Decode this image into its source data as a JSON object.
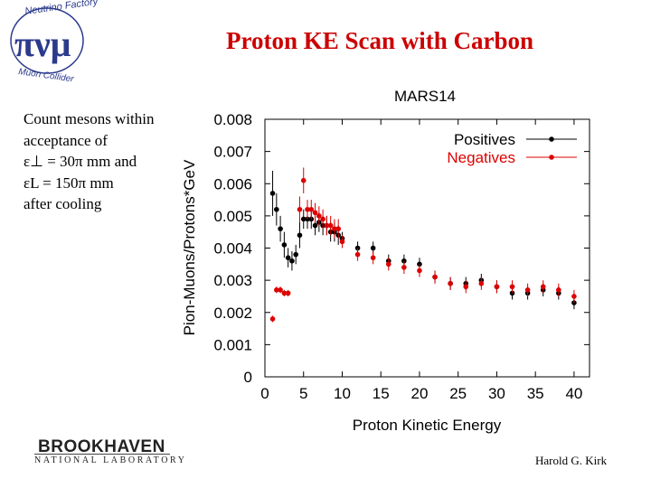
{
  "slide": {
    "title": "Proton KE Scan with Carbon",
    "notes": [
      "Count mesons within",
      "acceptance of",
      "ε⊥ = 30π mm  and",
      "εL = 150π mm",
      "after cooling"
    ],
    "author": "Harold G. Kirk",
    "logo_top_text": "Neutrino Factory",
    "logo_bottom_text": "Muon Collider",
    "logo_symbols": "πνμ",
    "bnl_name": "BROOKHAVEN",
    "bnl_sub": "NATIONAL LABORATORY"
  },
  "chart_data": {
    "type": "scatter",
    "title": "MARS14",
    "xlabel": "Proton Kinetic Energy",
    "ylabel": "Pion-Muons/Protons*GeV",
    "xlim": [
      0,
      42
    ],
    "ylim": [
      0,
      0.008
    ],
    "xticks": [
      "0",
      "5",
      "10",
      "15",
      "20",
      "25",
      "30",
      "35",
      "40"
    ],
    "yticks": [
      "0",
      "0.001",
      "0.002",
      "0.003",
      "0.004",
      "0.005",
      "0.006",
      "0.007",
      "0.008"
    ],
    "legend_position": "top-right",
    "series": [
      {
        "name": "Positives",
        "color": "#000000",
        "points": [
          [
            1,
            0.0057,
            0.0007
          ],
          [
            1.5,
            0.0052,
            0.0005
          ],
          [
            2,
            0.0046,
            0.0004
          ],
          [
            2.5,
            0.0041,
            0.0004
          ],
          [
            3,
            0.0037,
            0.0003
          ],
          [
            3.5,
            0.0036,
            0.0003
          ],
          [
            4,
            0.0038,
            0.0003
          ],
          [
            4.5,
            0.0044,
            0.0004
          ],
          [
            5,
            0.0049,
            0.0003
          ],
          [
            5.5,
            0.0049,
            0.0003
          ],
          [
            6,
            0.0049,
            0.0003
          ],
          [
            6.5,
            0.0047,
            0.0003
          ],
          [
            7,
            0.0048,
            0.0003
          ],
          [
            7.5,
            0.0047,
            0.0003
          ],
          [
            8,
            0.0047,
            0.0003
          ],
          [
            8.5,
            0.0045,
            0.0003
          ],
          [
            9,
            0.0045,
            0.0003
          ],
          [
            9.5,
            0.0044,
            0.0003
          ],
          [
            10,
            0.0043,
            0.0002
          ],
          [
            12,
            0.004,
            0.0002
          ],
          [
            14,
            0.004,
            0.0002
          ],
          [
            16,
            0.0036,
            0.0002
          ],
          [
            18,
            0.0036,
            0.0002
          ],
          [
            20,
            0.0035,
            0.0002
          ],
          [
            22,
            0.0031,
            0.0002
          ],
          [
            24,
            0.0029,
            0.0002
          ],
          [
            26,
            0.0029,
            0.0002
          ],
          [
            28,
            0.003,
            0.0002
          ],
          [
            30,
            0.0028,
            0.0002
          ],
          [
            32,
            0.0026,
            0.0002
          ],
          [
            34,
            0.0026,
            0.0002
          ],
          [
            36,
            0.0027,
            0.0002
          ],
          [
            38,
            0.0026,
            0.0002
          ],
          [
            40,
            0.0023,
            0.0002
          ]
        ]
      },
      {
        "name": "Negatives",
        "color": "#dd0000",
        "points": [
          [
            1,
            0.0018,
            0.0001
          ],
          [
            1.5,
            0.0027,
            0.0001
          ],
          [
            2,
            0.0027,
            0.0001
          ],
          [
            2.5,
            0.0026,
            0.0001
          ],
          [
            3,
            0.0026,
            0.0001
          ],
          [
            4.5,
            0.0052,
            0.0004
          ],
          [
            5,
            0.0061,
            0.0004
          ],
          [
            5.5,
            0.0052,
            0.0003
          ],
          [
            6,
            0.0052,
            0.0003
          ],
          [
            6.5,
            0.0051,
            0.0003
          ],
          [
            7,
            0.005,
            0.0003
          ],
          [
            7.5,
            0.0049,
            0.0003
          ],
          [
            8,
            0.0047,
            0.0003
          ],
          [
            8.5,
            0.0047,
            0.0003
          ],
          [
            9,
            0.0046,
            0.0003
          ],
          [
            9.5,
            0.0046,
            0.0003
          ],
          [
            10,
            0.0042,
            0.0002
          ],
          [
            12,
            0.0038,
            0.0002
          ],
          [
            14,
            0.0037,
            0.0002
          ],
          [
            16,
            0.0035,
            0.0002
          ],
          [
            18,
            0.0034,
            0.0002
          ],
          [
            20,
            0.0033,
            0.0002
          ],
          [
            22,
            0.0031,
            0.0002
          ],
          [
            24,
            0.0029,
            0.0002
          ],
          [
            26,
            0.0028,
            0.0002
          ],
          [
            28,
            0.0029,
            0.0002
          ],
          [
            30,
            0.0028,
            0.0002
          ],
          [
            32,
            0.0028,
            0.0002
          ],
          [
            34,
            0.0027,
            0.0002
          ],
          [
            36,
            0.0028,
            0.0002
          ],
          [
            38,
            0.0027,
            0.0002
          ],
          [
            40,
            0.0025,
            0.0002
          ]
        ]
      }
    ]
  }
}
